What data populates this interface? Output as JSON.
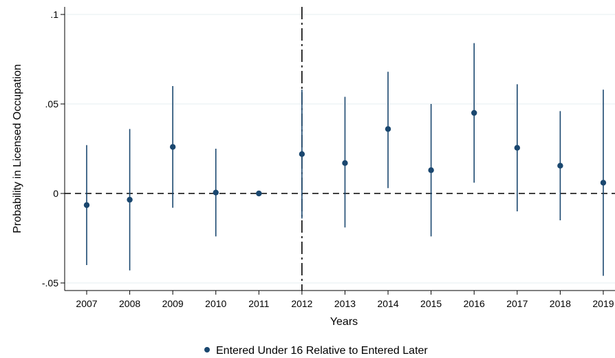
{
  "chart_data": {
    "type": "scatter",
    "title": "",
    "xlabel": "Years",
    "ylabel": "Probability in Licensed Occupation",
    "x_ticks": [
      "2007",
      "2008",
      "2009",
      "2010",
      "2011",
      "2012",
      "2013",
      "2014",
      "2015",
      "2016",
      "2017",
      "2018",
      "2019"
    ],
    "y_ticks": [
      {
        "value": -0.05,
        "label": "-.05"
      },
      {
        "value": 0,
        "label": "0"
      },
      {
        "value": 0.05,
        "label": ".05"
      },
      {
        "value": 0.1,
        "label": ".1"
      }
    ],
    "ylim": [
      -0.054,
      0.103
    ],
    "reference_lines": {
      "y_zero": 0,
      "x_event": "2012"
    },
    "grid": "horizontal",
    "legend_position": "bottom",
    "colors": {
      "series": "#1a476f",
      "reference": "#000000",
      "grid": "#eaf2f3"
    },
    "series": [
      {
        "name": "Entered Under 16 Relative to Entered Later",
        "points": [
          {
            "x": "2007",
            "y": -0.0065,
            "lo": -0.04,
            "hi": 0.027
          },
          {
            "x": "2008",
            "y": -0.0035,
            "lo": -0.043,
            "hi": 0.036
          },
          {
            "x": "2009",
            "y": 0.026,
            "lo": -0.008,
            "hi": 0.06
          },
          {
            "x": "2010",
            "y": 0.0005,
            "lo": -0.024,
            "hi": 0.025
          },
          {
            "x": "2011",
            "y": 0.0,
            "lo": 0.0,
            "hi": 0.0
          },
          {
            "x": "2012",
            "y": 0.022,
            "lo": -0.014,
            "hi": 0.058
          },
          {
            "x": "2013",
            "y": 0.017,
            "lo": -0.019,
            "hi": 0.054
          },
          {
            "x": "2014",
            "y": 0.036,
            "lo": 0.003,
            "hi": 0.068
          },
          {
            "x": "2015",
            "y": 0.013,
            "lo": -0.024,
            "hi": 0.05
          },
          {
            "x": "2016",
            "y": 0.045,
            "lo": 0.006,
            "hi": 0.084
          },
          {
            "x": "2017",
            "y": 0.0255,
            "lo": -0.01,
            "hi": 0.061
          },
          {
            "x": "2018",
            "y": 0.0155,
            "lo": -0.015,
            "hi": 0.046
          },
          {
            "x": "2019",
            "y": 0.006,
            "lo": -0.046,
            "hi": 0.058
          }
        ]
      }
    ]
  }
}
